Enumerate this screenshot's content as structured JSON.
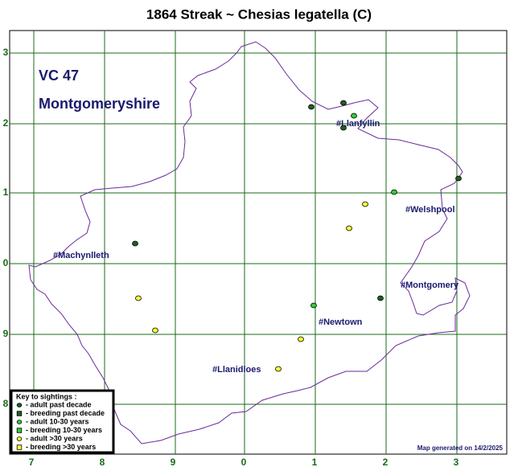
{
  "title": "1864 Streak ~ Chesias legatella (C)",
  "area": {
    "code": "VC 47",
    "name": "Montgomeryshire"
  },
  "towns": [
    "#Llanfyllin",
    "#Welshpool",
    "#Machynlleth",
    "#Montgomery",
    "#Newtown",
    "#Llanidloes"
  ],
  "grid": {
    "x_labels": [
      "7",
      "8",
      "9",
      "0",
      "1",
      "2",
      "3"
    ],
    "y_labels": [
      "3",
      "2",
      "1",
      "0",
      "9",
      "8"
    ]
  },
  "legend": {
    "title": "Key to sightings :",
    "items": [
      "- adult past decade",
      "- breeding past decade",
      "- adult 10-30 years",
      "- breeding 10-30 years",
      "- adult >30 years",
      "- breeding >30 years"
    ]
  },
  "footer": "Map generated on 14/2/2025"
}
